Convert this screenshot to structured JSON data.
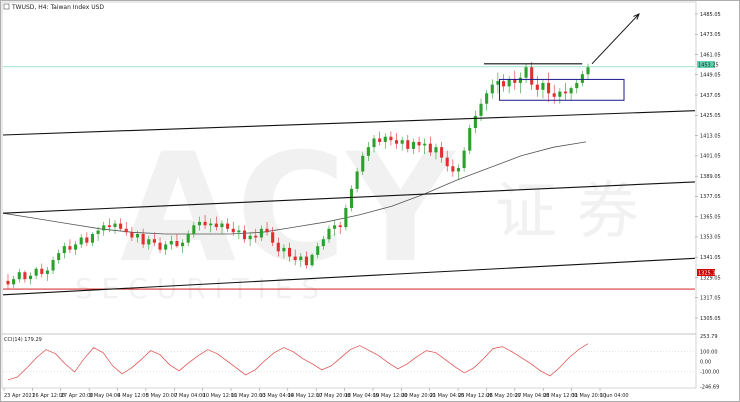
{
  "window": {
    "title": "TWUSD, H4: Taiwan Index USD",
    "title_icon": "chart-icon"
  },
  "price_axis": {
    "labels": [
      "1485.05",
      "1473.05",
      "1461.05",
      "1449.05",
      "1437.05",
      "1425.05",
      "1413.05",
      "1401.05",
      "1389.05",
      "1377.05",
      "1365.05",
      "1353.05",
      "1341.05",
      "1329.05",
      "1317.05",
      "1305.05"
    ],
    "current_price": "1453.25",
    "red_level": "1325.32"
  },
  "cci_panel": {
    "label": "CCI(14) 179.29",
    "axis_labels": [
      "253.79",
      "100.00",
      "0.00",
      "-100.00",
      "-246.69"
    ]
  },
  "time_axis": {
    "labels": [
      "23 Apr 2021",
      "26 Apr 12:00",
      "27 Apr 20:00",
      "3 May 04:00",
      "4 May 12:00",
      "5 May 20:00",
      "7 May 04:00",
      "10 May 12:00",
      "11 May 20:00",
      "13 May 04:00",
      "14 May 12:00",
      "17 May 20:00",
      "18 May 04:00",
      "19 May 12:00",
      "20 May 20:00",
      "21 May 04:00",
      "25 May 12:00",
      "26 May 20:00",
      "27 May 04:00",
      "28 May 12:00",
      "31 May 20:00",
      "1 Jun 04:00"
    ]
  },
  "watermark": {
    "brand": "ACY",
    "cn": "证 券",
    "sub": "S E C U R I T I E S"
  },
  "colors": {
    "bull": "#2ca02c",
    "bear": "#e03030",
    "cci": "#e04848",
    "ma": "#555555",
    "red_level": "#cc0000",
    "current_level": "#5fd3b0",
    "box": "#1a1a8c"
  },
  "chart_data": {
    "type": "candlestick",
    "price_ylim": [
      1300,
      1490
    ],
    "cci_ylim": [
      -250,
      255
    ],
    "current_price": 1453.25,
    "red_level": 1325.32,
    "candles": [
      [
        1330,
        1334,
        1325,
        1328
      ],
      [
        1328,
        1333,
        1326,
        1331
      ],
      [
        1331,
        1337,
        1329,
        1335
      ],
      [
        1335,
        1336,
        1329,
        1331
      ],
      [
        1331,
        1335,
        1328,
        1333
      ],
      [
        1333,
        1338,
        1331,
        1337
      ],
      [
        1337,
        1340,
        1332,
        1334
      ],
      [
        1334,
        1338,
        1330,
        1336
      ],
      [
        1336,
        1344,
        1334,
        1342
      ],
      [
        1342,
        1348,
        1340,
        1346
      ],
      [
        1346,
        1352,
        1343,
        1350
      ],
      [
        1350,
        1354,
        1346,
        1348
      ],
      [
        1348,
        1353,
        1345,
        1351
      ],
      [
        1351,
        1357,
        1349,
        1355
      ],
      [
        1355,
        1358,
        1350,
        1352
      ],
      [
        1352,
        1358,
        1350,
        1357
      ],
      [
        1357,
        1361,
        1353,
        1359
      ],
      [
        1359,
        1364,
        1356,
        1362
      ],
      [
        1362,
        1366,
        1358,
        1361
      ],
      [
        1361,
        1365,
        1357,
        1363
      ],
      [
        1363,
        1366,
        1359,
        1360
      ],
      [
        1360,
        1364,
        1356,
        1358
      ],
      [
        1358,
        1361,
        1353,
        1355
      ],
      [
        1355,
        1359,
        1352,
        1357
      ],
      [
        1357,
        1360,
        1349,
        1351
      ],
      [
        1351,
        1356,
        1348,
        1354
      ],
      [
        1354,
        1358,
        1350,
        1352
      ],
      [
        1352,
        1355,
        1346,
        1348
      ],
      [
        1348,
        1353,
        1345,
        1351
      ],
      [
        1351,
        1356,
        1348,
        1353
      ],
      [
        1353,
        1357,
        1349,
        1350
      ],
      [
        1350,
        1354,
        1346,
        1352
      ],
      [
        1352,
        1359,
        1350,
        1357
      ],
      [
        1357,
        1364,
        1355,
        1362
      ],
      [
        1362,
        1367,
        1359,
        1364
      ],
      [
        1364,
        1368,
        1360,
        1362
      ],
      [
        1362,
        1366,
        1358,
        1363
      ],
      [
        1363,
        1367,
        1359,
        1361
      ],
      [
        1361,
        1365,
        1357,
        1363
      ],
      [
        1363,
        1366,
        1358,
        1360
      ],
      [
        1360,
        1364,
        1356,
        1358
      ],
      [
        1358,
        1362,
        1354,
        1359
      ],
      [
        1359,
        1362,
        1352,
        1354
      ],
      [
        1354,
        1358,
        1350,
        1356
      ],
      [
        1356,
        1360,
        1352,
        1355
      ],
      [
        1355,
        1362,
        1353,
        1360
      ],
      [
        1360,
        1364,
        1356,
        1358
      ],
      [
        1358,
        1361,
        1350,
        1352
      ],
      [
        1352,
        1355,
        1344,
        1347
      ],
      [
        1347,
        1351,
        1343,
        1349
      ],
      [
        1349,
        1352,
        1341,
        1344
      ],
      [
        1344,
        1348,
        1339,
        1342
      ],
      [
        1342,
        1346,
        1338,
        1344
      ],
      [
        1344,
        1347,
        1337,
        1339
      ],
      [
        1339,
        1346,
        1338,
        1345
      ],
      [
        1345,
        1352,
        1343,
        1350
      ],
      [
        1350,
        1356,
        1348,
        1354
      ],
      [
        1354,
        1362,
        1352,
        1360
      ],
      [
        1360,
        1365,
        1356,
        1362
      ],
      [
        1362,
        1364,
        1357,
        1361
      ],
      [
        1361,
        1374,
        1359,
        1372
      ],
      [
        1372,
        1385,
        1370,
        1383
      ],
      [
        1383,
        1395,
        1381,
        1393
      ],
      [
        1393,
        1404,
        1391,
        1402
      ],
      [
        1402,
        1410,
        1399,
        1407
      ],
      [
        1407,
        1414,
        1404,
        1412
      ],
      [
        1412,
        1416,
        1408,
        1410
      ],
      [
        1410,
        1415,
        1406,
        1413
      ],
      [
        1413,
        1416,
        1408,
        1411
      ],
      [
        1411,
        1415,
        1406,
        1409
      ],
      [
        1409,
        1413,
        1405,
        1411
      ],
      [
        1411,
        1414,
        1404,
        1406
      ],
      [
        1406,
        1412,
        1403,
        1410
      ],
      [
        1410,
        1413,
        1404,
        1408
      ],
      [
        1408,
        1412,
        1403,
        1409
      ],
      [
        1409,
        1413,
        1402,
        1404
      ],
      [
        1404,
        1409,
        1400,
        1407
      ],
      [
        1407,
        1410,
        1398,
        1401
      ],
      [
        1401,
        1405,
        1393,
        1396
      ],
      [
        1396,
        1400,
        1390,
        1393
      ],
      [
        1393,
        1397,
        1388,
        1395
      ],
      [
        1395,
        1407,
        1393,
        1405
      ],
      [
        1405,
        1420,
        1403,
        1418
      ],
      [
        1418,
        1428,
        1415,
        1425
      ],
      [
        1425,
        1435,
        1422,
        1432
      ],
      [
        1432,
        1440,
        1428,
        1438
      ],
      [
        1438,
        1446,
        1435,
        1443
      ],
      [
        1443,
        1450,
        1438,
        1445
      ],
      [
        1445,
        1449,
        1439,
        1442
      ],
      [
        1442,
        1448,
        1438,
        1446
      ],
      [
        1446,
        1451,
        1440,
        1444
      ],
      [
        1444,
        1450,
        1438,
        1447
      ],
      [
        1447,
        1455,
        1444,
        1453
      ],
      [
        1453,
        1456,
        1440,
        1443
      ],
      [
        1443,
        1448,
        1436,
        1440
      ],
      [
        1440,
        1446,
        1435,
        1444
      ],
      [
        1444,
        1450,
        1433,
        1438
      ],
      [
        1438,
        1443,
        1432,
        1436
      ],
      [
        1436,
        1441,
        1432,
        1439
      ],
      [
        1439,
        1444,
        1434,
        1438
      ],
      [
        1438,
        1442,
        1434,
        1441
      ],
      [
        1441,
        1446,
        1438,
        1444
      ],
      [
        1444,
        1451,
        1442,
        1449
      ],
      [
        1449,
        1455,
        1446,
        1453
      ]
    ],
    "ma": [
      1369,
      1366,
      1363,
      1360,
      1358,
      1357,
      1357,
      1357,
      1358,
      1361,
      1364,
      1368,
      1373,
      1380,
      1388,
      1395,
      1402,
      1407,
      1410
    ],
    "cci": [
      -180,
      -150,
      -60,
      40,
      120,
      80,
      -20,
      -100,
      30,
      140,
      90,
      -40,
      -120,
      -60,
      20,
      110,
      70,
      -30,
      -90,
      -10,
      60,
      120,
      80,
      10,
      -60,
      -130,
      -80,
      10,
      90,
      140,
      100,
      30,
      -20,
      -80,
      -40,
      40,
      120,
      160,
      110,
      60,
      -10,
      -70,
      -20,
      50,
      110,
      90,
      20,
      -50,
      -110,
      -60,
      30,
      130,
      150,
      100,
      40,
      -20,
      -90,
      -140,
      -60,
      40,
      120,
      179
    ],
    "trendlines": [
      {
        "name": "top-channel",
        "from": [
          0,
          1414
        ],
        "to": [
          1,
          1428
        ]
      },
      {
        "name": "mid-channel",
        "from": [
          0,
          1369
        ],
        "to": [
          1,
          1387
        ]
      },
      {
        "name": "low-channel",
        "from": [
          0,
          1322
        ],
        "to": [
          1,
          1343
        ]
      },
      {
        "name": "resistance-hline",
        "from": [
          0.695,
          1455
        ],
        "to": [
          0.837,
          1455
        ]
      }
    ]
  }
}
